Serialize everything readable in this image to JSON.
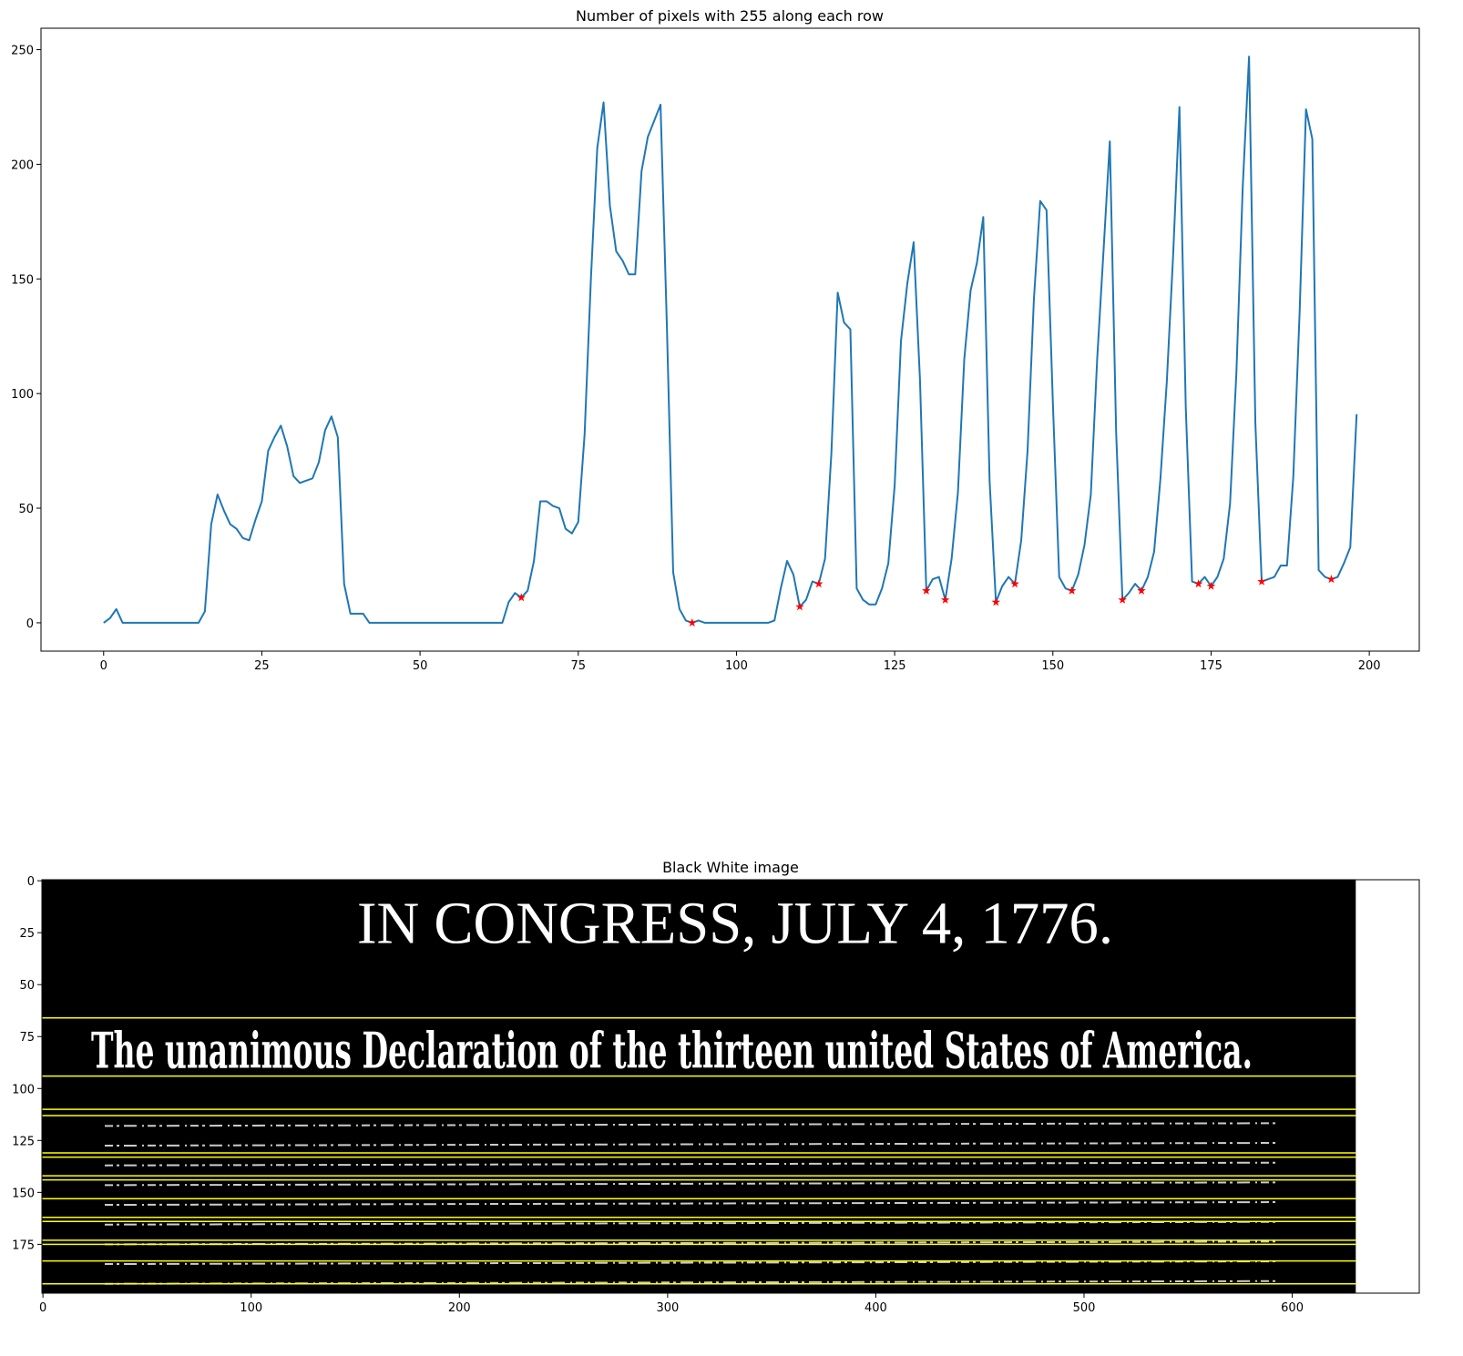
{
  "chart_data": [
    {
      "type": "line",
      "title": "Number of pixels with 255 along each row",
      "x": [
        0,
        1,
        2,
        3,
        4,
        5,
        6,
        7,
        8,
        9,
        10,
        11,
        12,
        13,
        14,
        15,
        16,
        17,
        18,
        19,
        20,
        21,
        22,
        23,
        24,
        25,
        26,
        27,
        28,
        29,
        30,
        31,
        32,
        33,
        34,
        35,
        36,
        37,
        38,
        39,
        40,
        41,
        42,
        43,
        44,
        45,
        46,
        47,
        48,
        49,
        50,
        51,
        52,
        53,
        54,
        55,
        56,
        57,
        58,
        59,
        60,
        61,
        62,
        63,
        64,
        65,
        66,
        67,
        68,
        69,
        70,
        71,
        72,
        73,
        74,
        75,
        76,
        77,
        78,
        79,
        80,
        81,
        82,
        83,
        84,
        85,
        86,
        87,
        88,
        89,
        90,
        91,
        92,
        93,
        94,
        95,
        96,
        97,
        98,
        99,
        100,
        101,
        102,
        103,
        104,
        105,
        106,
        107,
        108,
        109,
        110,
        111,
        112,
        113,
        114,
        115,
        116,
        117,
        118,
        119,
        120,
        121,
        122,
        123,
        124,
        125,
        126,
        127,
        128,
        129,
        130,
        131,
        132,
        133,
        134,
        135,
        136,
        137,
        138,
        139,
        140,
        141,
        142,
        143,
        144,
        145,
        146,
        147,
        148,
        149,
        150,
        151,
        152,
        153,
        154,
        155,
        156,
        157,
        158,
        159,
        160,
        161,
        162,
        163,
        164,
        165,
        166,
        167,
        168,
        169,
        170,
        171,
        172,
        173,
        174,
        175,
        176,
        177,
        178,
        179,
        180,
        181,
        182,
        183,
        184,
        185,
        186,
        187,
        188,
        189,
        190,
        191,
        192,
        193,
        194,
        195,
        196,
        197,
        198
      ],
      "series": [
        {
          "color": "#1f77b4",
          "marker": "none",
          "values": [
            0,
            2,
            6,
            0,
            0,
            0,
            0,
            0,
            0,
            0,
            0,
            0,
            0,
            0,
            0,
            0,
            5,
            43,
            56,
            49,
            43,
            41,
            37,
            36,
            45,
            53,
            75,
            81,
            86,
            77,
            64,
            61,
            62,
            63,
            70,
            84,
            90,
            81,
            17,
            4,
            4,
            4,
            0,
            0,
            0,
            0,
            0,
            0,
            0,
            0,
            0,
            0,
            0,
            0,
            0,
            0,
            0,
            0,
            0,
            0,
            0,
            0,
            0,
            0,
            9,
            13,
            11,
            14,
            27,
            53,
            53,
            51,
            50,
            41,
            39,
            44,
            82,
            150,
            207,
            227,
            182,
            162,
            158,
            152,
            152,
            197,
            212,
            219,
            226,
            130,
            22,
            6,
            1,
            0,
            1,
            0,
            0,
            0,
            0,
            0,
            0,
            0,
            0,
            0,
            0,
            0,
            1,
            15,
            27,
            21,
            7,
            10,
            18,
            17,
            28,
            74,
            144,
            131,
            128,
            15,
            10,
            8,
            8,
            15,
            26,
            60,
            123,
            148,
            166,
            106,
            14,
            19,
            20,
            10,
            28,
            57,
            115,
            145,
            157,
            177,
            62,
            9,
            16,
            20,
            17,
            36,
            75,
            141,
            184,
            180,
            96,
            20,
            15,
            14,
            21,
            34,
            56,
            115,
            162,
            210,
            83,
            10,
            13,
            17,
            14,
            20,
            31,
            63,
            105,
            160,
            225,
            94,
            18,
            17,
            20,
            16,
            20,
            28,
            52,
            109,
            190,
            247,
            87,
            18,
            19,
            20,
            25,
            25,
            64,
            136,
            224,
            211,
            23,
            20,
            19,
            20,
            26,
            33,
            91
          ]
        },
        {
          "color": "red",
          "marker": "star",
          "x": [
            66,
            93,
            110,
            113,
            130,
            133,
            141,
            144,
            153,
            161,
            164,
            173,
            175,
            183,
            194
          ],
          "values": [
            11,
            0,
            7,
            17,
            14,
            10,
            9,
            17,
            14,
            10,
            14,
            17,
            16,
            18,
            19
          ]
        }
      ],
      "xlim": [
        -9.9,
        207.9
      ],
      "ylim": [
        -12.35,
        259.35
      ],
      "xticks": [
        0,
        25,
        50,
        75,
        100,
        125,
        150,
        175,
        200
      ],
      "yticks": [
        0,
        50,
        100,
        150,
        200,
        250
      ]
    },
    {
      "type": "image",
      "title": "Black White image",
      "image_size": [
        631,
        199
      ],
      "image_text": [
        "IN CONGRESS, JULY 4, 1776.",
        "The unanimous Declaration of the thirteen united States of America."
      ],
      "hlines": {
        "color": "yellow",
        "y": [
          66,
          94,
          110,
          113,
          131,
          133,
          142,
          144,
          153,
          162,
          164,
          173,
          175,
          183,
          194
        ]
      },
      "xlim": [
        -0.5,
        661
      ],
      "ylim": [
        198.5,
        -0.5
      ],
      "xticks": [
        0,
        100,
        200,
        300,
        400,
        500,
        600
      ],
      "yticks": [
        0,
        25,
        50,
        75,
        100,
        125,
        150,
        175
      ]
    }
  ]
}
